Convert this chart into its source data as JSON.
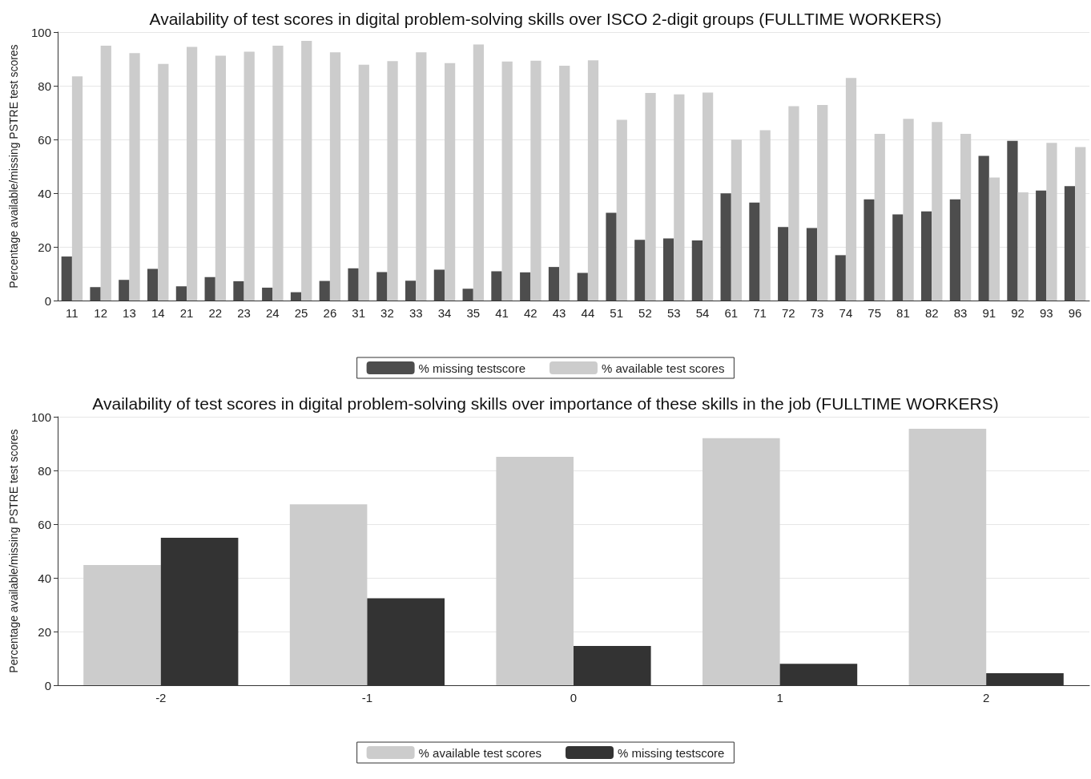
{
  "chart_data": [
    {
      "type": "bar",
      "title": "Availability of test scores in digital problem-solving skills over ISCO 2-digit groups (FULLTIME WORKERS)",
      "ylabel": "Percentage available/missing PSTRE test scores",
      "categories": [
        "11",
        "12",
        "13",
        "14",
        "21",
        "22",
        "23",
        "24",
        "25",
        "26",
        "31",
        "32",
        "33",
        "34",
        "35",
        "41",
        "42",
        "43",
        "44",
        "51",
        "52",
        "53",
        "54",
        "61",
        "71",
        "72",
        "73",
        "74",
        "75",
        "81",
        "82",
        "83",
        "91",
        "92",
        "93",
        "96"
      ],
      "series": [
        {
          "name": "% missing testscore",
          "color": "#4d4d4d",
          "values": [
            16.4,
            5.0,
            7.7,
            11.8,
            5.3,
            8.7,
            7.2,
            4.8,
            3.1,
            7.3,
            12.0,
            10.6,
            7.4,
            11.5,
            4.4,
            10.9,
            10.5,
            12.5,
            10.3,
            32.7,
            22.6,
            23.1,
            22.4,
            39.9,
            36.5,
            27.4,
            27.0,
            16.9,
            37.7,
            32.1,
            33.2,
            37.7,
            53.9,
            59.5,
            41.0,
            42.6
          ]
        },
        {
          "name": "% available test scores",
          "color": "#cccccc",
          "values": [
            83.5,
            94.9,
            92.2,
            88.1,
            94.5,
            91.2,
            92.7,
            94.9,
            96.7,
            92.5,
            87.8,
            89.2,
            92.5,
            88.4,
            95.4,
            89.0,
            89.3,
            87.5,
            89.5,
            67.3,
            77.3,
            76.8,
            77.5,
            59.9,
            63.4,
            72.4,
            72.8,
            82.9,
            62.1,
            67.7,
            66.5,
            62.1,
            45.8,
            40.3,
            58.7,
            57.2
          ]
        }
      ],
      "ylim": [
        0,
        100
      ],
      "yticks": [
        0,
        20,
        40,
        60,
        80,
        100
      ],
      "grid": "y",
      "legend": "bottom"
    },
    {
      "type": "bar",
      "title": "Availability of test scores in digital problem-solving skills over importance of these skills in the job (FULLTIME WORKERS)",
      "ylabel": "Percentage available/missing PSTRE test scores",
      "categories": [
        "-2",
        "-1",
        "0",
        "1",
        "2"
      ],
      "series": [
        {
          "name": "% available test scores",
          "color": "#cccccc",
          "values": [
            44.8,
            67.4,
            85.1,
            92.0,
            95.5
          ]
        },
        {
          "name": "% missing testscore",
          "color": "#333333",
          "values": [
            54.9,
            32.4,
            14.6,
            8.0,
            4.5
          ]
        }
      ],
      "ylim": [
        0,
        100
      ],
      "yticks": [
        0,
        20,
        40,
        60,
        80,
        100
      ],
      "grid": "y",
      "legend": "bottom"
    }
  ]
}
